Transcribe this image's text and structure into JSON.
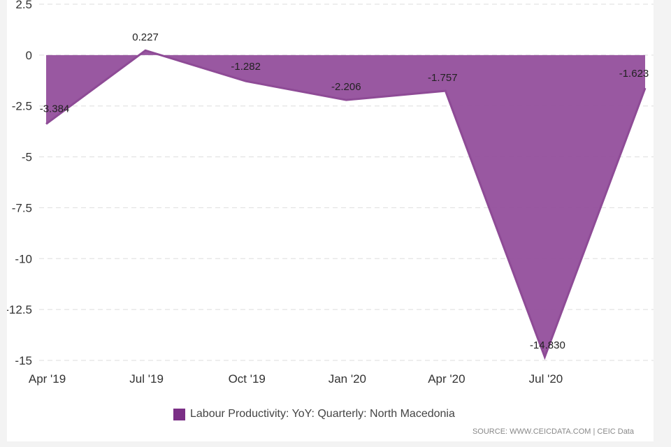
{
  "chart_data": {
    "type": "area",
    "x": [
      "Mar 2019",
      "Jun 2019",
      "Sep 2019",
      "Dec 2019",
      "Mar 2020",
      "Jun 2020",
      "Sep 2020"
    ],
    "series": [
      {
        "name": "Labour Productivity: YoY: Quarterly: North Macedonia",
        "values": [
          -3.384,
          0.227,
          -1.282,
          -2.206,
          -1.757,
          -14.83,
          -1.623
        ],
        "labels": [
          "-3.384",
          "0.227",
          "-1.282",
          "-2.206",
          "-1.757",
          "-14.830",
          "-1.623"
        ],
        "color": "#8e4b96",
        "fill_color": "#944f9c"
      }
    ],
    "x_ticks": [
      "Apr '19",
      "Jul '19",
      "Oct '19",
      "Jan '20",
      "Apr '20",
      "Jul '20"
    ],
    "x_tick_positions": [
      "Apr 2019",
      "Jul 2019",
      "Oct 2019",
      "Jan 2020",
      "Apr 2020",
      "Jul 2020"
    ],
    "y_ticks": [
      2.5,
      0,
      -2.5,
      -5,
      -7.5,
      -10,
      -12.5,
      -15
    ],
    "y_tick_labels": [
      "2.5",
      "0",
      "-2.5",
      "-5",
      "-7.5",
      "-10",
      "-12.5",
      "-15"
    ],
    "ylim": [
      -15,
      2.5
    ],
    "grid": true,
    "legend_position": "bottom-left",
    "title": "",
    "xlabel": "",
    "ylabel": ""
  },
  "legend": {
    "label": "Labour Productivity: YoY: Quarterly: North Macedonia",
    "color": "#7b2f86"
  },
  "source": "SOURCE: WWW.CEICDATA.COM | CEIC Data"
}
